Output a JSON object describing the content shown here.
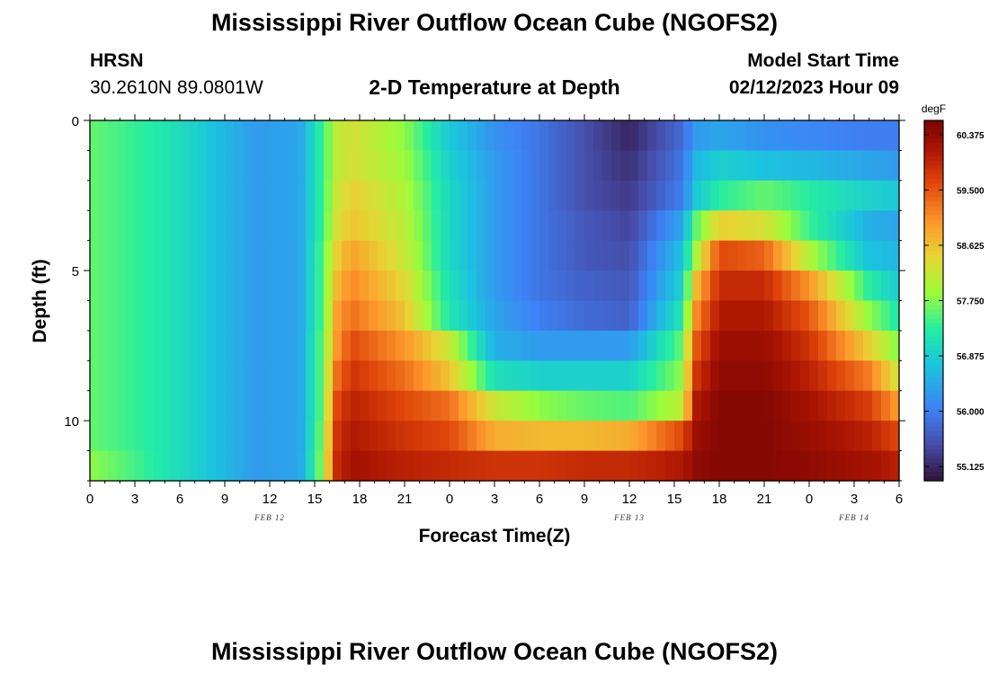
{
  "chart_data": {
    "type": "heatmap",
    "title": "Mississippi River Outflow Ocean Cube (NGOFS2)",
    "station": {
      "name": "HRSN",
      "coords": "30.2610N  89.0801W",
      "start_label": "Model Start Time",
      "start_time": "02/12/2023 Hour 09"
    },
    "subtitle": "2-D Temperature at Depth",
    "xlabel": "Forecast Time(Z)",
    "ylabel": "Depth (ft)",
    "x_range_hours": [
      0,
      54
    ],
    "y_range_ft": [
      0,
      12
    ],
    "x_ticks": [
      {
        "h": 0,
        "label": "0"
      },
      {
        "h": 3,
        "label": "3"
      },
      {
        "h": 6,
        "label": "6"
      },
      {
        "h": 9,
        "label": "9"
      },
      {
        "h": 12,
        "label": "12"
      },
      {
        "h": 15,
        "label": "15"
      },
      {
        "h": 18,
        "label": "18"
      },
      {
        "h": 21,
        "label": "21"
      },
      {
        "h": 24,
        "label": "0"
      },
      {
        "h": 27,
        "label": "3"
      },
      {
        "h": 30,
        "label": "6"
      },
      {
        "h": 33,
        "label": "9"
      },
      {
        "h": 36,
        "label": "12"
      },
      {
        "h": 39,
        "label": "15"
      },
      {
        "h": 42,
        "label": "18"
      },
      {
        "h": 45,
        "label": "21"
      },
      {
        "h": 48,
        "label": "0"
      },
      {
        "h": 51,
        "label": "3"
      },
      {
        "h": 54,
        "label": "6"
      }
    ],
    "date_labels": [
      {
        "h": 12,
        "label": "FEB 12"
      },
      {
        "h": 36,
        "label": "FEB 13"
      },
      {
        "h": 51,
        "label": "FEB 14"
      }
    ],
    "y_ticks": [
      {
        "d": 0,
        "label": "0"
      },
      {
        "d": 5,
        "label": "5"
      },
      {
        "d": 10,
        "label": "10"
      }
    ],
    "colorbar": {
      "unit": "degF",
      "min": 54.9,
      "max": 60.6,
      "ticks": [
        "60.375",
        "59.500",
        "58.625",
        "57.750",
        "56.875",
        "56.000",
        "55.125"
      ]
    },
    "depth_layers_ft": [
      0.5,
      1.5,
      2.5,
      3.5,
      4.5,
      5.5,
      6.5,
      7.5,
      8.5,
      9.5,
      10.5,
      11.5
    ],
    "time_keys_hours": [
      0,
      5,
      11,
      14,
      15.5,
      16.5,
      17.5,
      21,
      24,
      27,
      30,
      33,
      36,
      39.5,
      40.5,
      42,
      45,
      48,
      52,
      54
    ],
    "temperature_degF": [
      [
        57.6,
        57.2,
        56.3,
        56.4,
        57.4,
        58.1,
        58.3,
        57.8,
        56.8,
        56.2,
        55.9,
        55.5,
        55.1,
        55.8,
        56.3,
        56.4,
        56.2,
        56.1,
        56.0,
        56.0
      ],
      [
        57.6,
        57.2,
        56.3,
        56.4,
        57.4,
        58.1,
        58.3,
        57.9,
        56.9,
        56.3,
        55.9,
        55.5,
        55.2,
        55.9,
        56.6,
        56.9,
        56.7,
        56.6,
        56.4,
        56.3
      ],
      [
        57.6,
        57.2,
        56.3,
        56.4,
        57.4,
        58.2,
        58.5,
        58.0,
        57.0,
        56.3,
        55.9,
        55.5,
        55.3,
        56.0,
        56.8,
        57.3,
        57.6,
        57.3,
        56.9,
        56.8
      ],
      [
        57.6,
        57.2,
        56.3,
        56.4,
        57.4,
        58.3,
        58.6,
        58.1,
        57.0,
        56.3,
        55.9,
        55.6,
        55.4,
        56.4,
        57.6,
        58.5,
        58.3,
        57.4,
        56.5,
        56.4
      ],
      [
        57.6,
        57.2,
        56.3,
        56.4,
        57.5,
        58.5,
        58.9,
        58.2,
        57.0,
        56.3,
        55.9,
        55.6,
        55.5,
        56.7,
        58.0,
        59.6,
        59.4,
        58.0,
        56.7,
        56.6
      ],
      [
        57.6,
        57.2,
        56.3,
        56.4,
        57.5,
        58.7,
        59.1,
        58.4,
        57.1,
        56.3,
        55.9,
        55.7,
        55.6,
        56.9,
        58.7,
        59.9,
        59.9,
        59.0,
        57.3,
        56.8
      ],
      [
        57.6,
        57.2,
        56.3,
        56.4,
        57.5,
        58.9,
        59.3,
        58.6,
        57.2,
        56.4,
        56.0,
        55.8,
        55.7,
        57.2,
        59.1,
        60.1,
        60.1,
        59.5,
        57.8,
        57.2
      ],
      [
        57.6,
        57.2,
        56.3,
        56.4,
        57.6,
        59.0,
        59.6,
        59.0,
        58.2,
        56.5,
        56.3,
        56.3,
        56.3,
        57.6,
        59.5,
        60.3,
        60.3,
        59.8,
        58.5,
        57.7
      ],
      [
        57.6,
        57.2,
        56.3,
        56.4,
        57.6,
        59.3,
        59.8,
        59.3,
        58.6,
        57.1,
        56.9,
        56.9,
        56.9,
        57.8,
        59.8,
        60.4,
        60.4,
        60.0,
        59.2,
        58.2
      ],
      [
        57.6,
        57.2,
        56.3,
        56.4,
        57.6,
        59.6,
        60.0,
        59.6,
        59.3,
        58.2,
        57.8,
        57.6,
        57.5,
        58.1,
        60.1,
        60.5,
        60.5,
        60.2,
        59.7,
        58.9
      ],
      [
        57.6,
        57.2,
        56.3,
        56.4,
        57.7,
        59.8,
        60.1,
        59.8,
        59.6,
        58.8,
        58.7,
        58.7,
        58.8,
        59.6,
        60.3,
        60.5,
        60.5,
        60.3,
        60.0,
        59.6
      ],
      [
        57.8,
        57.2,
        56.3,
        56.4,
        57.8,
        59.9,
        60.2,
        60.0,
        59.9,
        59.8,
        59.8,
        59.9,
        59.9,
        60.1,
        60.4,
        60.5,
        60.5,
        60.4,
        60.2,
        60.0
      ]
    ]
  },
  "footer": {
    "title": "Mississippi River Outflow Ocean Cube (NGOFS2)"
  }
}
